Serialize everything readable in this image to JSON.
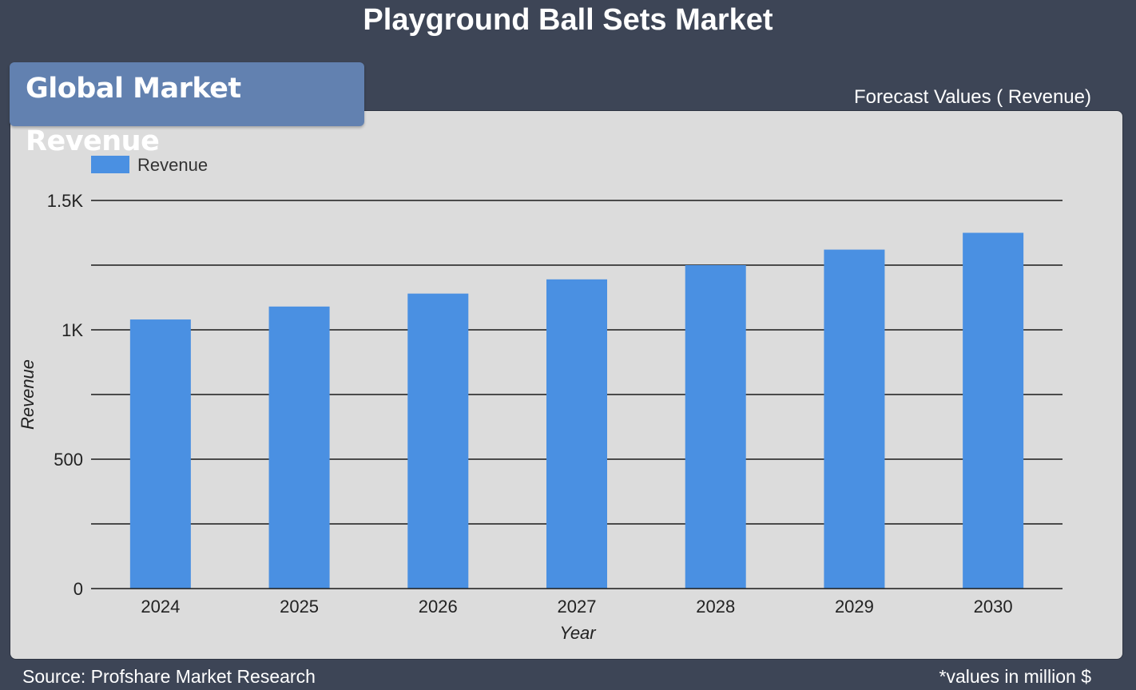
{
  "header": {
    "title": "Playground Ball Sets Market",
    "section_tab": "Global Market Revenue",
    "forecast_label": "Forecast Values ( Revenue)"
  },
  "footer": {
    "source": "Source: Profshare Market Research",
    "units_note": "*values in million $"
  },
  "chart_data": {
    "type": "bar",
    "categories": [
      "2024",
      "2025",
      "2026",
      "2027",
      "2028",
      "2029",
      "2030"
    ],
    "series": [
      {
        "name": "Revenue",
        "values": [
          1040,
          1090,
          1140,
          1195,
          1250,
          1310,
          1375
        ],
        "color": "#4a90e2"
      }
    ],
    "xlabel": "Year",
    "ylabel": "Revenue",
    "ylim": [
      0,
      1500
    ],
    "yticks": [
      0,
      500,
      1000,
      1500
    ],
    "ytick_labels": [
      "0",
      "500",
      "1K",
      "1.5K"
    ],
    "grid_step": 250,
    "grid": true,
    "legend": "top-left"
  }
}
